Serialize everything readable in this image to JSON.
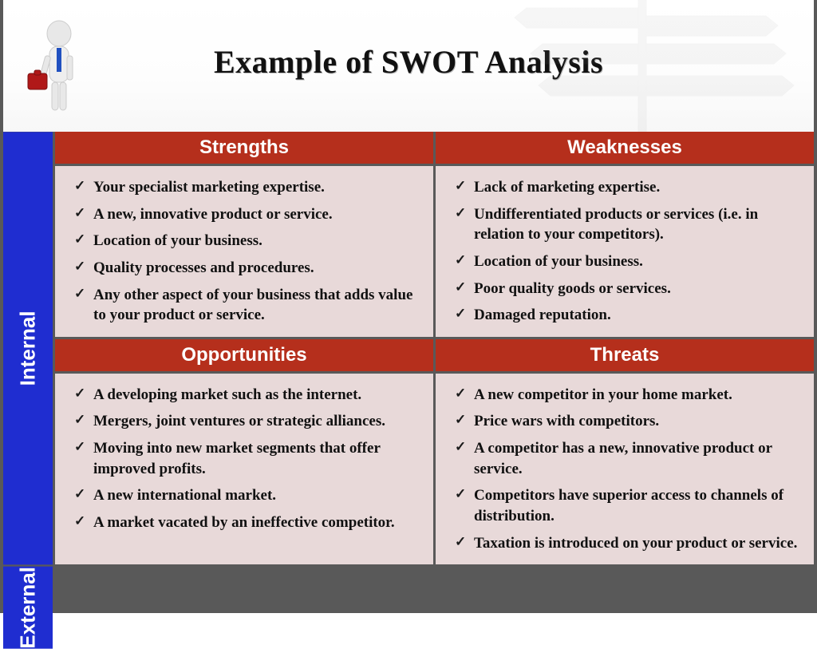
{
  "title": "Example of SWOT Analysis",
  "sideLabels": {
    "internal": "Internal",
    "external": "External"
  },
  "quadrants": {
    "strengths": {
      "header": "Strengths",
      "items": [
        "Your specialist marketing expertise.",
        "A new, innovative product or service.",
        "Location of your business.",
        "Quality processes and procedures.",
        "Any other aspect of your business that adds value to your product or service."
      ]
    },
    "weaknesses": {
      "header": "Weaknesses",
      "items": [
        "Lack of marketing expertise.",
        "Undifferentiated products or services (i.e. in relation to your competitors).",
        "Location of your business.",
        "Poor quality goods or services.",
        "Damaged reputation."
      ]
    },
    "opportunities": {
      "header": "Opportunities",
      "items": [
        "A developing market such as the internet.",
        "Mergers, joint ventures or strategic alliances.",
        "Moving into new market segments that offer improved profits.",
        "A new international market.",
        "A market vacated by an ineffective competitor."
      ]
    },
    "threats": {
      "header": "Threats",
      "items": [
        "A new competitor in your home market.",
        "Price wars with competitors.",
        "A competitor has a new, innovative product or service.",
        "Competitors have superior access to channels of distribution.",
        "Taxation is introduced on your product or service."
      ]
    }
  },
  "colors": {
    "sideLabelBg": "#1f2dd0",
    "headerBg": "#b52f1c",
    "bodyBg": "#e8d9d9",
    "frame": "#595959"
  }
}
